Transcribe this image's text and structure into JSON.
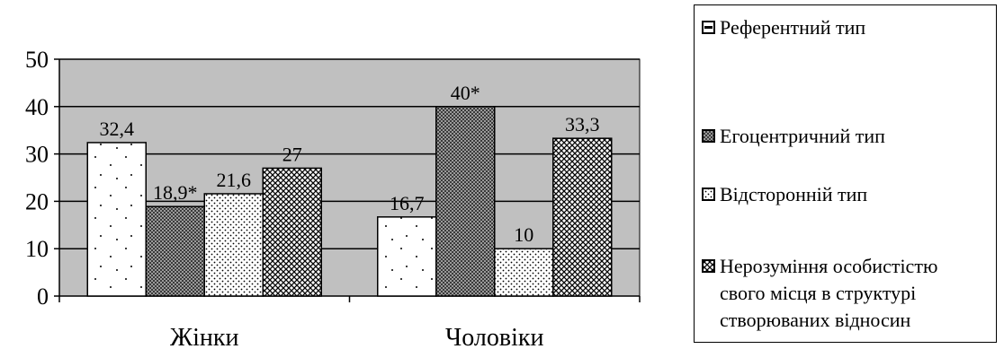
{
  "chart_data": {
    "type": "bar",
    "categories": [
      "Жінки",
      "Чоловіки"
    ],
    "series": [
      {
        "name": "Референтний тип",
        "values": [
          32.4,
          16.7
        ],
        "labels": [
          "32,4",
          "16,7"
        ]
      },
      {
        "name": "Егоцентричний тип",
        "values": [
          18.9,
          40
        ],
        "labels": [
          "18,9*",
          "40*"
        ]
      },
      {
        "name": "Відсторонній тип",
        "values": [
          21.6,
          10
        ],
        "labels": [
          "21,6",
          "10"
        ]
      },
      {
        "name": "Нерозуміння особистістю\nсвого місця в структурі\nстворюваних відносин",
        "values": [
          27,
          33.3
        ],
        "labels": [
          "27",
          "33,3"
        ]
      }
    ],
    "ylim": [
      0,
      50
    ],
    "yticks": [
      "0",
      "10",
      "20",
      "30",
      "40",
      "50"
    ],
    "grid": true,
    "plot_background": "#c0c0c0",
    "legend_position": "right"
  }
}
